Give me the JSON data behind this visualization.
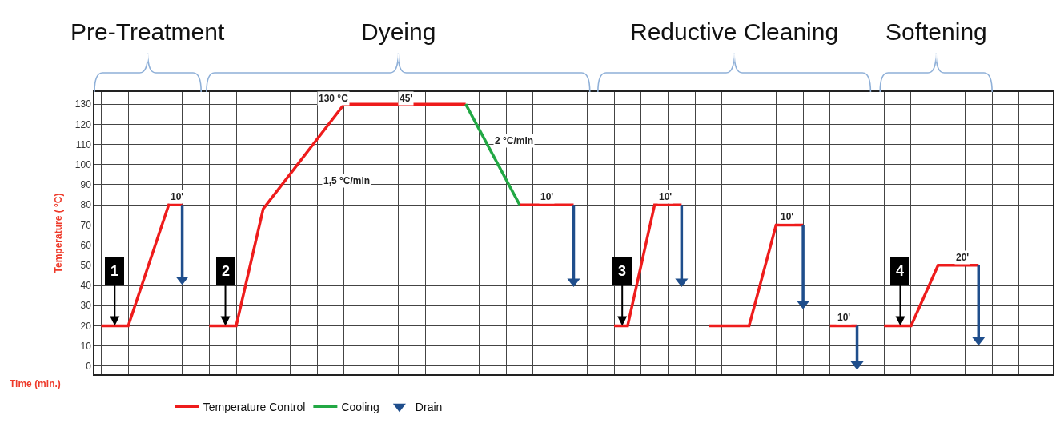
{
  "chart_data": {
    "type": "line",
    "ylabel": "Temperature ( °C)",
    "xlabel": "Time (min.)",
    "categories": [
      null,
      null,
      null,
      null,
      null,
      null,
      null,
      null,
      null,
      null,
      null,
      null,
      null,
      null,
      null,
      null,
      null,
      null,
      null,
      null,
      null,
      null,
      null,
      null,
      null,
      null,
      null,
      null,
      null,
      null,
      null,
      null,
      null,
      null,
      null,
      null,
      null,
      null,
      null,
      null,
      null,
      null,
      null,
      null,
      null,
      null,
      null,
      null,
      null,
      null,
      null,
      null,
      null,
      null,
      null,
      null,
      null,
      null,
      null,
      null,
      null,
      null,
      null,
      null,
      null,
      null,
      null,
      null,
      null,
      null,
      null
    ],
    "ylim": [
      -4,
      136
    ],
    "yticks": [
      0,
      10,
      20,
      30,
      40,
      50,
      60,
      70,
      80,
      90,
      100,
      110,
      120,
      130
    ],
    "tick_labels": "y",
    "grid": true,
    "legend": "bottom",
    "series": [
      {
        "name": "Temperature Control",
        "color": "#ee1c1c",
        "values": [
          20,
          null,
          20,
          null,
          null,
          80,
          80,
          null,
          null,
          null,
          null,
          null,
          null,
          null,
          null,
          null,
          null,
          null,
          null,
          null,
          null,
          null,
          null,
          null,
          null,
          null,
          null,
          null,
          null,
          null,
          null,
          null,
          null,
          null,
          null,
          null,
          null,
          null,
          null,
          null,
          null,
          null,
          null,
          null,
          null,
          null,
          null,
          null,
          null,
          null,
          null,
          null,
          null,
          null,
          null,
          null,
          null,
          null,
          null,
          null,
          null,
          null,
          null,
          null,
          null,
          null,
          null,
          null,
          null,
          null,
          null
        ]
      },
      {
        "color": "#ee1c1c",
        "values": [
          null,
          null,
          null,
          null,
          null,
          null,
          null,
          null,
          20,
          null,
          20,
          null,
          78,
          null,
          null,
          null,
          null,
          null,
          130,
          null,
          null,
          null,
          null,
          null,
          null,
          null,
          null,
          130,
          null,
          null,
          null,
          null,
          null,
          null,
          null,
          null,
          null,
          null,
          null,
          null,
          null,
          null,
          null,
          null,
          null,
          null,
          null,
          null,
          null,
          null,
          null,
          null,
          null,
          null,
          null,
          null,
          null,
          null,
          null,
          null,
          null,
          null,
          null,
          null,
          null,
          null,
          null,
          null,
          null,
          null,
          null
        ]
      },
      {
        "name": "Cooling",
        "color": "#22a844",
        "values": [
          null,
          null,
          null,
          null,
          null,
          null,
          null,
          null,
          null,
          null,
          null,
          null,
          null,
          null,
          null,
          null,
          null,
          null,
          null,
          null,
          null,
          null,
          null,
          null,
          null,
          null,
          null,
          130,
          null,
          null,
          null,
          80,
          null,
          null,
          null,
          null,
          null,
          null,
          null,
          null,
          null,
          null,
          null,
          null,
          null,
          null,
          null,
          null,
          null,
          null,
          null,
          null,
          null,
          null,
          null,
          null,
          null,
          null,
          null,
          null,
          null,
          null,
          null,
          null,
          null,
          null,
          null,
          null,
          null,
          null,
          null
        ]
      },
      {
        "color": "#ee1c1c",
        "values": [
          null,
          null,
          null,
          null,
          null,
          null,
          null,
          null,
          null,
          null,
          null,
          null,
          null,
          null,
          null,
          null,
          null,
          null,
          null,
          null,
          null,
          null,
          null,
          null,
          null,
          null,
          null,
          null,
          null,
          null,
          null,
          80,
          null,
          null,
          null,
          80,
          null,
          null,
          null,
          null,
          null,
          null,
          null,
          null,
          null,
          null,
          null,
          null,
          null,
          null,
          null,
          null,
          null,
          null,
          null,
          null,
          null,
          null,
          null,
          null,
          null,
          null,
          null,
          null,
          null,
          null,
          null,
          null,
          null,
          null,
          null
        ]
      },
      {
        "color": "#ee1c1c",
        "values": [
          null,
          null,
          null,
          null,
          null,
          null,
          null,
          null,
          null,
          null,
          null,
          null,
          null,
          null,
          null,
          null,
          null,
          null,
          null,
          null,
          null,
          null,
          null,
          null,
          null,
          null,
          null,
          null,
          null,
          null,
          null,
          null,
          null,
          null,
          null,
          null,
          null,
          null,
          20,
          20,
          null,
          80,
          null,
          80,
          null,
          null,
          null,
          null,
          null,
          null,
          null,
          null,
          null,
          null,
          null,
          null,
          null,
          null,
          null,
          null,
          null,
          null,
          null,
          null,
          null,
          null,
          null,
          null,
          null,
          null,
          null
        ]
      },
      {
        "color": "#ee1c1c",
        "values": [
          null,
          null,
          null,
          null,
          null,
          null,
          null,
          null,
          null,
          null,
          null,
          null,
          null,
          null,
          null,
          null,
          null,
          null,
          null,
          null,
          null,
          null,
          null,
          null,
          null,
          null,
          null,
          null,
          null,
          null,
          null,
          null,
          null,
          null,
          null,
          null,
          null,
          null,
          null,
          null,
          null,
          null,
          null,
          null,
          null,
          20,
          null,
          null,
          20,
          null,
          70,
          null,
          70,
          null,
          null,
          null,
          null,
          null,
          null,
          null,
          null,
          null,
          null,
          null,
          null,
          null,
          null,
          null,
          null,
          null,
          null
        ]
      },
      {
        "color": "#ee1c1c",
        "values": [
          null,
          null,
          null,
          null,
          null,
          null,
          null,
          null,
          null,
          null,
          null,
          null,
          null,
          null,
          null,
          null,
          null,
          null,
          null,
          null,
          null,
          null,
          null,
          null,
          null,
          null,
          null,
          null,
          null,
          null,
          null,
          null,
          null,
          null,
          null,
          null,
          null,
          null,
          null,
          null,
          null,
          null,
          null,
          null,
          null,
          null,
          null,
          null,
          null,
          null,
          null,
          null,
          null,
          null,
          20,
          null,
          20,
          null,
          null,
          null,
          null,
          null,
          null,
          null,
          null,
          null,
          null,
          null,
          null,
          null,
          null
        ]
      },
      {
        "color": "#ee1c1c",
        "values": [
          null,
          null,
          null,
          null,
          null,
          null,
          null,
          null,
          null,
          null,
          null,
          null,
          null,
          null,
          null,
          null,
          null,
          null,
          null,
          null,
          null,
          null,
          null,
          null,
          null,
          null,
          null,
          null,
          null,
          null,
          null,
          null,
          null,
          null,
          null,
          null,
          null,
          null,
          null,
          null,
          null,
          null,
          null,
          null,
          null,
          null,
          null,
          null,
          null,
          null,
          null,
          null,
          null,
          null,
          null,
          null,
          null,
          null,
          20,
          null,
          20,
          null,
          50,
          null,
          null,
          50,
          null,
          null,
          null,
          null,
          null
        ]
      },
      {
        "name": "Drain",
        "type": "scatter",
        "color": "#1f4e8c",
        "marker": "triangle",
        "values": [
          null,
          null,
          null,
          null,
          null,
          null,
          43,
          null,
          null,
          null,
          null,
          null,
          null,
          null,
          null,
          null,
          null,
          null,
          null,
          null,
          null,
          null,
          null,
          null,
          null,
          null,
          null,
          null,
          null,
          null,
          null,
          null,
          null,
          null,
          null,
          42,
          null,
          null,
          null,
          null,
          null,
          null,
          null,
          42,
          null,
          null,
          null,
          null,
          null,
          null,
          null,
          null,
          31,
          null,
          null,
          null,
          1,
          null,
          null,
          null,
          null,
          null,
          null,
          null,
          null,
          13,
          null,
          null,
          null,
          null,
          null
        ],
        "errors": [
          null,
          null,
          null,
          null,
          null,
          null,
          [
            43,
            80
          ],
          null,
          null,
          null,
          null,
          null,
          null,
          null,
          null,
          null,
          null,
          null,
          null,
          null,
          null,
          null,
          null,
          null,
          null,
          null,
          null,
          null,
          null,
          null,
          null,
          null,
          null,
          null,
          null,
          [
            42,
            80
          ],
          null,
          null,
          null,
          null,
          null,
          null,
          null,
          [
            42,
            80
          ],
          null,
          null,
          null,
          null,
          null,
          null,
          null,
          null,
          [
            31,
            70
          ],
          null,
          null,
          null,
          [
            1,
            20
          ],
          null,
          null,
          null,
          null,
          null,
          null,
          null,
          null,
          [
            13,
            50
          ],
          null,
          null,
          null,
          null,
          null
        ]
      }
    ],
    "annotations": [
      {
        "text": "130 °C",
        "y": 133
      },
      {
        "text": "45'",
        "y": 133
      },
      "1,5 °C/min",
      "2 °C/min",
      {
        "text": "10'",
        "y": 84
      },
      {
        "text": "10'",
        "y": 84
      },
      {
        "text": "10'",
        "y": 84
      },
      {
        "text": "10'",
        "y": 74
      },
      {
        "text": "10'",
        "y": 24
      },
      {
        "text": "20'",
        "y": 54
      },
      {
        "text": "1",
        "y": 47
      },
      {
        "text": "2",
        "y": 47
      },
      {
        "text": "3",
        "y": 47
      },
      {
        "text": "4",
        "y": 47
      },
      "Pre-Treatment",
      "Dyeing",
      "Reductive Cleaning",
      "Softening"
    ]
  }
}
